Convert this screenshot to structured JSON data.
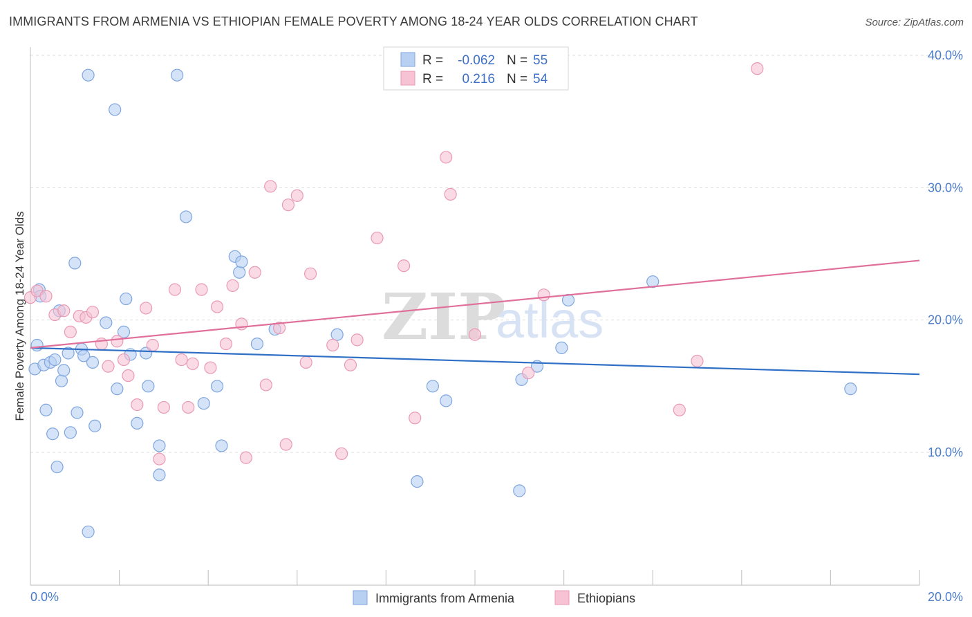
{
  "title": "IMMIGRANTS FROM ARMENIA VS ETHIOPIAN FEMALE POVERTY AMONG 18-24 YEAR OLDS CORRELATION CHART",
  "source": "Source: ZipAtlas.com",
  "watermark": {
    "part1": "ZIP",
    "part2": "atlas"
  },
  "colors": {
    "armenia_fill": "#b8d0f2",
    "armenia_stroke": "#7fa6df",
    "armenia_line": "#2f6fc6",
    "ethiopia_fill": "#f7c3d4",
    "ethiopia_stroke": "#e99ab5",
    "ethiopia_line": "#e0709a",
    "grid": "#dddddd",
    "tick_label": "#4a7cc9"
  },
  "legend": {
    "rows": [
      {
        "r_label": "R = ",
        "r_value": "-0.062",
        "n_label": "N = ",
        "n_value": "55"
      },
      {
        "r_label": "R = ",
        "r_value": "0.216",
        "n_label": "N = ",
        "n_value": "54"
      }
    ]
  },
  "bottom_legend": {
    "series1": "Immigrants from Armenia",
    "series2": "Ethiopians"
  },
  "chart_data": {
    "type": "scatter",
    "title": "IMMIGRANTS FROM ARMENIA VS ETHIOPIAN FEMALE POVERTY AMONG 18-24 YEAR OLDS CORRELATION CHART",
    "xlabel": "",
    "ylabel": "Female Poverty Among 18-24 Year Olds",
    "xlim": [
      0,
      20
    ],
    "ylim": [
      0,
      42
    ],
    "y_ticks": [
      {
        "value": 10,
        "label": "10.0%"
      },
      {
        "value": 20,
        "label": "20.0%"
      },
      {
        "value": 30,
        "label": "30.0%"
      },
      {
        "value": 40,
        "label": "40.0%"
      }
    ],
    "x_ticks_labeled": [
      {
        "value": 0,
        "label": "0.0%"
      },
      {
        "value": 20,
        "label": "20.0%"
      }
    ],
    "x_minor_ticks": [
      2,
      4,
      6,
      8,
      10,
      12,
      14,
      16,
      18,
      20
    ],
    "grid": true,
    "series": [
      {
        "name": "Immigrants from Armenia",
        "R": -0.062,
        "N": 55,
        "trend": {
          "x0": 0,
          "y0": 17.9,
          "x1": 20,
          "y1": 15.9
        },
        "points": [
          [
            0.1,
            16.3
          ],
          [
            0.15,
            18.1
          ],
          [
            0.2,
            22.3
          ],
          [
            0.3,
            16.6
          ],
          [
            0.35,
            13.2
          ],
          [
            0.45,
            16.8
          ],
          [
            0.5,
            11.4
          ],
          [
            0.6,
            8.9
          ],
          [
            0.65,
            20.7
          ],
          [
            0.7,
            15.4
          ],
          [
            0.75,
            16.2
          ],
          [
            0.85,
            17.5
          ],
          [
            0.9,
            11.5
          ],
          [
            1.0,
            24.3
          ],
          [
            1.05,
            13.0
          ],
          [
            1.15,
            17.8
          ],
          [
            1.2,
            17.3
          ],
          [
            1.3,
            38.5
          ],
          [
            1.3,
            4.0
          ],
          [
            1.4,
            16.8
          ],
          [
            1.45,
            12.0
          ],
          [
            1.7,
            19.8
          ],
          [
            1.9,
            35.9
          ],
          [
            1.95,
            14.8
          ],
          [
            2.1,
            19.1
          ],
          [
            2.15,
            21.6
          ],
          [
            2.25,
            17.4
          ],
          [
            2.4,
            12.2
          ],
          [
            2.6,
            17.5
          ],
          [
            2.65,
            15.0
          ],
          [
            2.9,
            10.5
          ],
          [
            2.9,
            8.3
          ],
          [
            3.3,
            38.5
          ],
          [
            3.5,
            27.8
          ],
          [
            3.9,
            13.7
          ],
          [
            4.2,
            15.0
          ],
          [
            4.3,
            10.5
          ],
          [
            4.6,
            24.8
          ],
          [
            4.7,
            23.6
          ],
          [
            4.75,
            24.4
          ],
          [
            5.1,
            18.2
          ],
          [
            5.5,
            19.3
          ],
          [
            6.9,
            18.9
          ],
          [
            8.7,
            7.8
          ],
          [
            9.05,
            15.0
          ],
          [
            9.35,
            13.9
          ],
          [
            11.0,
            7.1
          ],
          [
            11.05,
            15.5
          ],
          [
            11.4,
            16.5
          ],
          [
            11.95,
            17.9
          ],
          [
            12.1,
            21.5
          ],
          [
            14.0,
            22.9
          ],
          [
            18.45,
            14.8
          ],
          [
            0.22,
            21.8
          ],
          [
            0.55,
            17.0
          ]
        ]
      },
      {
        "name": "Ethiopians",
        "R": 0.216,
        "N": 54,
        "trend": {
          "x0": 0,
          "y0": 17.9,
          "x1": 20,
          "y1": 24.5
        },
        "points": [
          [
            0.0,
            21.7
          ],
          [
            0.15,
            22.2
          ],
          [
            0.35,
            21.8
          ],
          [
            0.55,
            20.4
          ],
          [
            0.75,
            20.7
          ],
          [
            0.9,
            19.1
          ],
          [
            1.1,
            20.3
          ],
          [
            1.25,
            20.2
          ],
          [
            1.4,
            20.6
          ],
          [
            1.6,
            18.2
          ],
          [
            1.75,
            16.5
          ],
          [
            1.95,
            18.4
          ],
          [
            2.1,
            17.0
          ],
          [
            2.2,
            15.8
          ],
          [
            2.4,
            13.6
          ],
          [
            2.6,
            20.9
          ],
          [
            2.75,
            18.1
          ],
          [
            2.9,
            9.5
          ],
          [
            3.0,
            13.4
          ],
          [
            3.25,
            22.3
          ],
          [
            3.4,
            17.0
          ],
          [
            3.55,
            13.4
          ],
          [
            3.65,
            16.7
          ],
          [
            3.85,
            22.3
          ],
          [
            4.05,
            16.4
          ],
          [
            4.2,
            21.0
          ],
          [
            4.4,
            18.2
          ],
          [
            4.55,
            22.6
          ],
          [
            4.75,
            19.7
          ],
          [
            4.85,
            9.6
          ],
          [
            5.05,
            23.6
          ],
          [
            5.3,
            15.1
          ],
          [
            5.4,
            30.1
          ],
          [
            5.6,
            19.4
          ],
          [
            5.75,
            10.6
          ],
          [
            5.8,
            28.7
          ],
          [
            6.0,
            29.4
          ],
          [
            6.2,
            16.8
          ],
          [
            6.3,
            23.5
          ],
          [
            6.8,
            18.1
          ],
          [
            7.0,
            9.9
          ],
          [
            7.2,
            16.6
          ],
          [
            7.35,
            18.5
          ],
          [
            7.8,
            26.2
          ],
          [
            8.4,
            24.1
          ],
          [
            8.65,
            12.6
          ],
          [
            9.35,
            32.3
          ],
          [
            9.45,
            29.5
          ],
          [
            10.0,
            18.9
          ],
          [
            11.2,
            16.0
          ],
          [
            11.55,
            21.9
          ],
          [
            14.6,
            13.2
          ],
          [
            15.0,
            16.9
          ],
          [
            16.35,
            39.0
          ]
        ]
      }
    ]
  }
}
